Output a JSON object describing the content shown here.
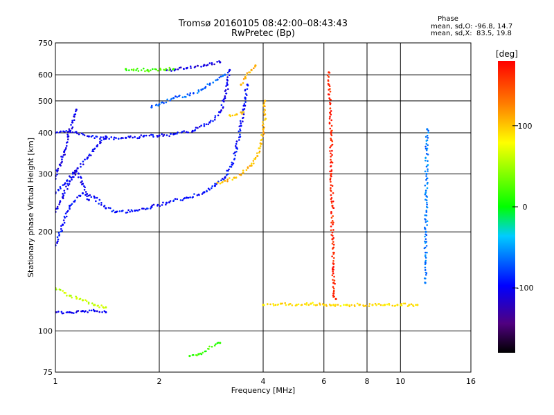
{
  "header": {
    "title_line1": "Tromsø 20160105 08:42:00–08:43:43",
    "title_line2": "RwPretec (Bp)",
    "phase_heading": "Phase",
    "phase_o": "mean, sd,O: -96.8, 14.7",
    "phase_x": "mean, sd,X:  83.5, 19.8"
  },
  "chart_data": {
    "type": "scatter",
    "xlabel": "Frequency [MHz]",
    "ylabel": "Stationary phase Virtual Height [km]",
    "x_scale": "log2",
    "y_scale": "log",
    "xlim": [
      1,
      16
    ],
    "ylim": [
      75,
      750
    ],
    "x_ticks": [
      1,
      2,
      4,
      6,
      8,
      10,
      16
    ],
    "x_tick_labels": [
      "1",
      "2",
      "4",
      "6",
      "8",
      "10",
      "16"
    ],
    "y_ticks": [
      75,
      100,
      200,
      300,
      400,
      500,
      600,
      750
    ],
    "y_tick_labels": [
      "75",
      "100",
      "200",
      "300",
      "400",
      "500",
      "600",
      "750"
    ],
    "grid": true,
    "colorbar": {
      "label": "[deg]",
      "range": [
        -180,
        180
      ],
      "ticks": [
        100,
        0,
        -100
      ],
      "tick_labels": [
        "100",
        "0",
        "-100"
      ]
    },
    "traces": [
      {
        "phase": -95,
        "points": [
          [
            1.0,
            182
          ],
          [
            1.05,
            210
          ],
          [
            1.1,
            240
          ],
          [
            1.2,
            262
          ],
          [
            1.3,
            254
          ],
          [
            1.4,
            236
          ],
          [
            1.5,
            230
          ],
          [
            1.7,
            232
          ],
          [
            1.9,
            238
          ],
          [
            2.1,
            245
          ],
          [
            2.4,
            254
          ],
          [
            2.7,
            264
          ],
          [
            2.9,
            276
          ],
          [
            3.1,
            292
          ],
          [
            3.25,
            320
          ],
          [
            3.35,
            360
          ],
          [
            3.45,
            420
          ],
          [
            3.5,
            470
          ],
          [
            3.55,
            510
          ],
          [
            3.6,
            560
          ]
        ]
      },
      {
        "phase": -100,
        "points": [
          [
            1.0,
            400
          ],
          [
            1.1,
            405
          ],
          [
            1.25,
            390
          ],
          [
            1.4,
            384
          ],
          [
            1.6,
            386
          ],
          [
            1.8,
            390
          ],
          [
            2.0,
            392
          ],
          [
            2.2,
            396
          ],
          [
            2.5,
            405
          ],
          [
            2.8,
            430
          ],
          [
            3.0,
            462
          ],
          [
            3.1,
            510
          ],
          [
            3.15,
            560
          ],
          [
            3.2,
            620
          ]
        ]
      },
      {
        "phase": -70,
        "points": [
          [
            1.9,
            478
          ],
          [
            2.0,
            488
          ],
          [
            2.2,
            510
          ],
          [
            2.45,
            520
          ],
          [
            2.65,
            540
          ],
          [
            2.8,
            560
          ],
          [
            2.95,
            580
          ],
          [
            3.1,
            600
          ]
        ]
      },
      {
        "phase": -110,
        "points": [
          [
            2.1,
            620
          ],
          [
            2.4,
            628
          ],
          [
            2.7,
            642
          ],
          [
            3.0,
            655
          ]
        ]
      },
      {
        "phase": -105,
        "points": [
          [
            1.0,
            290
          ],
          [
            1.03,
            320
          ],
          [
            1.06,
            350
          ],
          [
            1.09,
            390
          ],
          [
            1.12,
            430
          ],
          [
            1.15,
            470
          ]
        ]
      },
      {
        "phase": -105,
        "points": [
          [
            1.0,
            230
          ],
          [
            1.05,
            255
          ],
          [
            1.1,
            285
          ],
          [
            1.15,
            305
          ],
          [
            1.2,
            280
          ],
          [
            1.25,
            250
          ]
        ]
      },
      {
        "phase": -100,
        "points": [
          [
            1.0,
            262
          ],
          [
            1.08,
            286
          ],
          [
            1.16,
            312
          ],
          [
            1.24,
            336
          ],
          [
            1.32,
            364
          ],
          [
            1.4,
            390
          ]
        ]
      },
      {
        "phase": 105,
        "points": [
          [
            2.95,
            282
          ],
          [
            3.1,
            286
          ],
          [
            3.3,
            292
          ],
          [
            3.5,
            302
          ],
          [
            3.7,
            318
          ],
          [
            3.85,
            340
          ],
          [
            3.95,
            370
          ],
          [
            4.0,
            410
          ],
          [
            4.05,
            455
          ],
          [
            4.05,
            500
          ]
        ]
      },
      {
        "phase": 95,
        "points": [
          [
            3.2,
            452
          ],
          [
            3.35,
            455
          ],
          [
            3.5,
            462
          ]
        ]
      },
      {
        "phase": 110,
        "points": [
          [
            3.45,
            560
          ],
          [
            3.55,
            590
          ],
          [
            3.7,
            620
          ],
          [
            3.8,
            640
          ]
        ]
      },
      {
        "phase": 90,
        "points": [
          [
            4.0,
            120
          ],
          [
            4.5,
            121
          ],
          [
            5.0,
            120
          ],
          [
            5.5,
            121
          ],
          [
            6.0,
            120
          ],
          [
            6.4,
            120
          ],
          [
            7.0,
            120
          ],
          [
            7.6,
            120
          ],
          [
            8.3,
            120
          ],
          [
            9.0,
            120
          ],
          [
            9.8,
            120
          ],
          [
            10.6,
            120
          ],
          [
            11.2,
            120
          ]
        ]
      },
      {
        "phase": 165,
        "points": [
          [
            6.2,
            610
          ],
          [
            6.2,
            560
          ],
          [
            6.25,
            460
          ],
          [
            6.3,
            380
          ],
          [
            6.3,
            300
          ],
          [
            6.35,
            240
          ],
          [
            6.35,
            190
          ],
          [
            6.4,
            160
          ],
          [
            6.4,
            140
          ],
          [
            6.4,
            130
          ],
          [
            6.5,
            125
          ]
        ]
      },
      {
        "phase": -100,
        "points": [
          [
            1.0,
            114
          ],
          [
            1.1,
            114
          ],
          [
            1.2,
            115
          ],
          [
            1.3,
            115
          ],
          [
            1.4,
            114
          ]
        ]
      },
      {
        "phase": 60,
        "points": [
          [
            1.0,
            135
          ],
          [
            1.1,
            128
          ],
          [
            1.2,
            124
          ],
          [
            1.3,
            120
          ],
          [
            1.4,
            118
          ]
        ]
      },
      {
        "phase": 20,
        "points": [
          [
            1.6,
            625
          ],
          [
            1.85,
            620
          ],
          [
            2.2,
            625
          ]
        ]
      },
      {
        "phase": 15,
        "points": [
          [
            2.45,
            84
          ],
          [
            2.6,
            85
          ],
          [
            3.0,
            92
          ]
        ]
      },
      {
        "phase": -60,
        "points": [
          [
            11.8,
            140
          ],
          [
            11.85,
            200
          ],
          [
            11.9,
            300
          ],
          [
            11.95,
            410
          ]
        ]
      }
    ]
  }
}
